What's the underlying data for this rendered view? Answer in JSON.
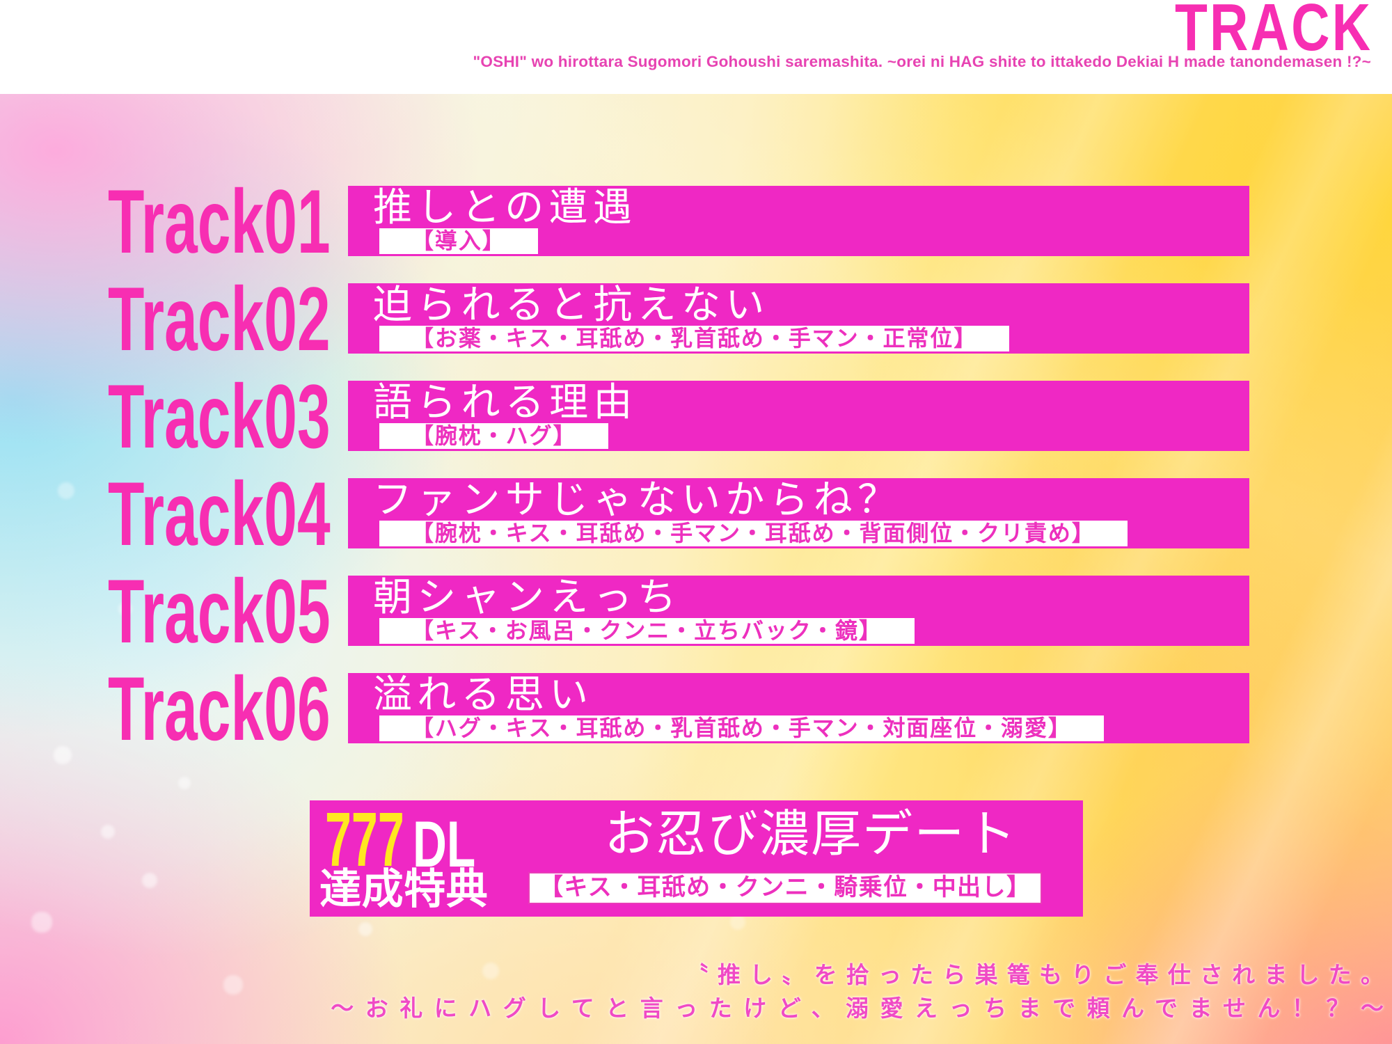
{
  "header": {
    "title": "TRACK",
    "subtitle": "\"OSHI\" wo hirottara Sugomori Gohoushi saremashita. ~orei ni HAG shite to ittakedo Dekiai H made tanondemasen !?~"
  },
  "tracks": [
    {
      "label": "Track01",
      "title": "推しとの遭遇",
      "tags": "【導入】"
    },
    {
      "label": "Track02",
      "title": "迫られると抗えない",
      "tags": "【お薬・キス・耳舐め・乳首舐め・手マン・正常位】"
    },
    {
      "label": "Track03",
      "title": "語られる理由",
      "tags": "【腕枕・ハグ】"
    },
    {
      "label": "Track04",
      "title": "ファンサじゃないからね？",
      "tags": "【腕枕・キス・耳舐め・手マン・耳舐め・背面側位・クリ責め】"
    },
    {
      "label": "Track05",
      "title": "朝シャンえっち",
      "tags": "【キス・お風呂・クンニ・立ちバック・鏡】"
    },
    {
      "label": "Track06",
      "title": "溢れる思い",
      "tags": "【ハグ・キス・耳舐め・乳首舐め・手マン・対面座位・溺愛】"
    }
  ],
  "bonus": {
    "count": "777",
    "unit": "DL",
    "achievement": "達成特典",
    "title": "お忍び濃厚デート",
    "tags": "【キス・耳舐め・クンニ・騎乗位・中出し】"
  },
  "footer": {
    "line1": "〝推し〟を拾ったら巣篭もりご奉仕されました。",
    "line2": "～お礼にハグしてと言ったけど、溺愛えっちまで頼んでません！？～"
  },
  "colors": {
    "bar_magenta": "#EF28C4",
    "accent_pink": "#F72EB2",
    "tag_pink": "#ED30BE",
    "subtitle_pink": "#E743B2",
    "footer_pink": "#F04AC5",
    "bonus_yellow": "#FFE821",
    "header_background": "#FFFFFF",
    "text_white": "#FFFFFF"
  }
}
